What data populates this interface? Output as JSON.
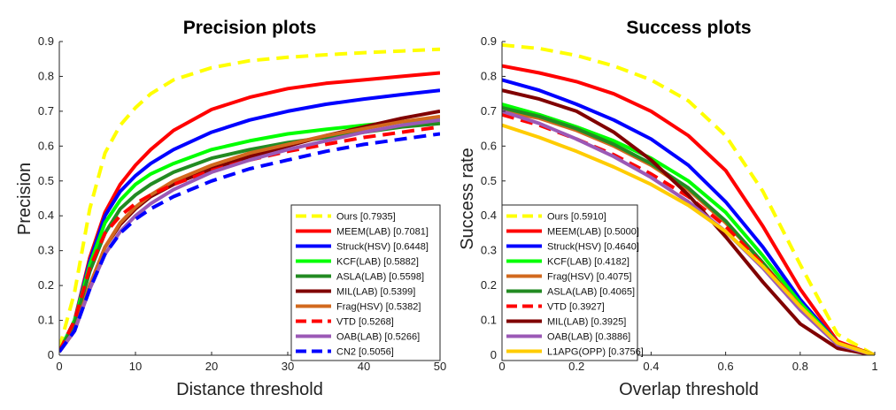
{
  "chart_data": [
    {
      "type": "line",
      "title": "Precision plots",
      "xlabel": "Distance threshold",
      "ylabel": "Precision",
      "xlim": [
        0,
        50
      ],
      "ylim": [
        0,
        0.9
      ],
      "xticks": [
        0,
        10,
        20,
        30,
        40,
        50
      ],
      "yticks": [
        0,
        0.1,
        0.2,
        0.3,
        0.4,
        0.5,
        0.6,
        0.7,
        0.8,
        0.9
      ],
      "legend_position": "bottom-right",
      "x": [
        0,
        2,
        4,
        6,
        8,
        10,
        12,
        15,
        20,
        25,
        30,
        35,
        40,
        45,
        50
      ],
      "series": [
        {
          "name": "Ours [0.7935]",
          "color": "#ffff00",
          "dash": "dashed",
          "values": [
            0.02,
            0.18,
            0.42,
            0.58,
            0.66,
            0.71,
            0.75,
            0.79,
            0.825,
            0.845,
            0.855,
            0.862,
            0.868,
            0.873,
            0.878
          ]
        },
        {
          "name": "MEEM(LAB) [0.7081]",
          "color": "#ff0000",
          "dash": "solid",
          "values": [
            0.01,
            0.1,
            0.28,
            0.41,
            0.49,
            0.545,
            0.59,
            0.645,
            0.705,
            0.74,
            0.765,
            0.78,
            0.79,
            0.8,
            0.81
          ]
        },
        {
          "name": "Struck(HSV) [0.6448]",
          "color": "#0000ff",
          "dash": "solid",
          "values": [
            0.01,
            0.1,
            0.27,
            0.4,
            0.47,
            0.515,
            0.55,
            0.59,
            0.64,
            0.675,
            0.7,
            0.72,
            0.735,
            0.748,
            0.76
          ]
        },
        {
          "name": "KCF(LAB) [0.5882]",
          "color": "#00ff00",
          "dash": "solid",
          "values": [
            0.01,
            0.1,
            0.26,
            0.38,
            0.445,
            0.49,
            0.52,
            0.55,
            0.59,
            0.615,
            0.635,
            0.648,
            0.66,
            0.67,
            0.675
          ]
        },
        {
          "name": "ASLA(LAB) [0.5598]",
          "color": "#228b22",
          "dash": "solid",
          "values": [
            0.01,
            0.09,
            0.24,
            0.35,
            0.42,
            0.46,
            0.49,
            0.525,
            0.565,
            0.59,
            0.61,
            0.625,
            0.64,
            0.655,
            0.665
          ]
        },
        {
          "name": "MIL(LAB) [0.5399]",
          "color": "#800000",
          "dash": "solid",
          "values": [
            0.01,
            0.07,
            0.2,
            0.31,
            0.375,
            0.42,
            0.455,
            0.49,
            0.535,
            0.57,
            0.6,
            0.63,
            0.655,
            0.68,
            0.7
          ]
        },
        {
          "name": "Frag(HSV) [0.5382]",
          "color": "#d2691e",
          "dash": "solid",
          "values": [
            0.01,
            0.07,
            0.2,
            0.31,
            0.38,
            0.425,
            0.46,
            0.5,
            0.545,
            0.58,
            0.605,
            0.63,
            0.65,
            0.67,
            0.685
          ]
        },
        {
          "name": "VTD [0.5268]",
          "color": "#ff0000",
          "dash": "dashed",
          "values": [
            0.01,
            0.1,
            0.25,
            0.35,
            0.4,
            0.435,
            0.46,
            0.49,
            0.53,
            0.56,
            0.585,
            0.605,
            0.625,
            0.64,
            0.655
          ]
        },
        {
          "name": "OAB(LAB) [0.5266]",
          "color": "#9b59b6",
          "dash": "solid",
          "values": [
            0.01,
            0.07,
            0.19,
            0.29,
            0.355,
            0.4,
            0.435,
            0.475,
            0.525,
            0.56,
            0.59,
            0.615,
            0.64,
            0.66,
            0.675
          ]
        },
        {
          "name": "CN2 [0.5056]",
          "color": "#0000ff",
          "dash": "dashed",
          "values": [
            0.01,
            0.07,
            0.19,
            0.29,
            0.35,
            0.39,
            0.42,
            0.455,
            0.5,
            0.535,
            0.56,
            0.585,
            0.605,
            0.62,
            0.635
          ]
        }
      ]
    },
    {
      "type": "line",
      "title": "Success plots",
      "xlabel": "Overlap threshold",
      "ylabel": "Success rate",
      "xlim": [
        0,
        1
      ],
      "ylim": [
        0,
        0.9
      ],
      "xticks": [
        0,
        0.2,
        0.4,
        0.6,
        0.8,
        1
      ],
      "yticks": [
        0,
        0.1,
        0.2,
        0.3,
        0.4,
        0.5,
        0.6,
        0.7,
        0.8,
        0.9
      ],
      "legend_position": "bottom-left",
      "x": [
        0,
        0.1,
        0.2,
        0.3,
        0.4,
        0.5,
        0.6,
        0.7,
        0.8,
        0.9,
        1.0
      ],
      "series": [
        {
          "name": "Ours [0.5910]",
          "color": "#ffff00",
          "dash": "dashed",
          "values": [
            0.89,
            0.88,
            0.86,
            0.83,
            0.79,
            0.73,
            0.63,
            0.47,
            0.26,
            0.06,
            0.0
          ]
        },
        {
          "name": "MEEM(LAB) [0.5000]",
          "color": "#ff0000",
          "dash": "solid",
          "values": [
            0.83,
            0.81,
            0.785,
            0.75,
            0.7,
            0.63,
            0.53,
            0.37,
            0.19,
            0.04,
            0.0
          ]
        },
        {
          "name": "Struck(HSV) [0.4640]",
          "color": "#0000ff",
          "dash": "solid",
          "values": [
            0.79,
            0.76,
            0.72,
            0.675,
            0.62,
            0.545,
            0.44,
            0.31,
            0.16,
            0.035,
            0.0
          ]
        },
        {
          "name": "KCF(LAB) [0.4182]",
          "color": "#00ff00",
          "dash": "solid",
          "values": [
            0.72,
            0.69,
            0.655,
            0.615,
            0.565,
            0.5,
            0.41,
            0.285,
            0.15,
            0.035,
            0.0
          ]
        },
        {
          "name": "Frag(HSV) [0.4075]",
          "color": "#d2691e",
          "dash": "solid",
          "values": [
            0.7,
            0.68,
            0.645,
            0.6,
            0.545,
            0.475,
            0.38,
            0.265,
            0.14,
            0.03,
            0.0
          ]
        },
        {
          "name": "ASLA(LAB) [0.4065]",
          "color": "#228b22",
          "dash": "solid",
          "values": [
            0.71,
            0.685,
            0.65,
            0.605,
            0.55,
            0.48,
            0.385,
            0.265,
            0.135,
            0.03,
            0.0
          ]
        },
        {
          "name": "VTD [0.3927]",
          "color": "#ff0000",
          "dash": "dashed",
          "values": [
            0.69,
            0.66,
            0.62,
            0.575,
            0.52,
            0.455,
            0.37,
            0.26,
            0.14,
            0.035,
            0.0
          ]
        },
        {
          "name": "MIL(LAB) [0.3925]",
          "color": "#800000",
          "dash": "solid",
          "values": [
            0.76,
            0.735,
            0.7,
            0.64,
            0.56,
            0.46,
            0.34,
            0.21,
            0.09,
            0.02,
            0.0
          ]
        },
        {
          "name": "OAB(LAB) [0.3886]",
          "color": "#9b59b6",
          "dash": "solid",
          "values": [
            0.7,
            0.665,
            0.62,
            0.57,
            0.51,
            0.44,
            0.355,
            0.25,
            0.13,
            0.03,
            0.0
          ]
        },
        {
          "name": "L1APG(OPP) [0.3756]",
          "color": "#ffcc00",
          "dash": "solid",
          "values": [
            0.66,
            0.625,
            0.585,
            0.54,
            0.49,
            0.43,
            0.355,
            0.255,
            0.14,
            0.035,
            0.0
          ]
        }
      ]
    }
  ]
}
